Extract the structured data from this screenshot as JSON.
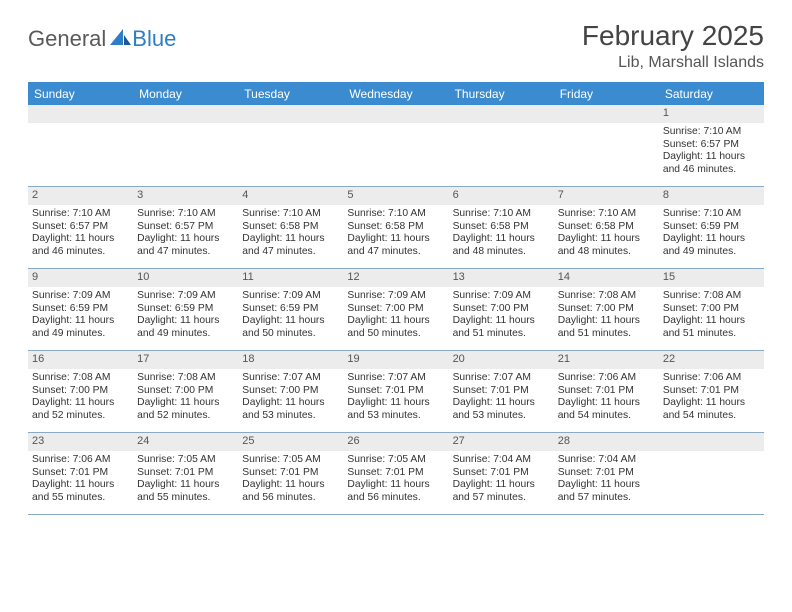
{
  "logo": {
    "word1": "General",
    "word2": "Blue"
  },
  "title": "February 2025",
  "location": "Lib, Marshall Islands",
  "header_bg": "#3b8bd0",
  "daynames": [
    "Sunday",
    "Monday",
    "Tuesday",
    "Wednesday",
    "Thursday",
    "Friday",
    "Saturday"
  ],
  "weeks": [
    [
      {
        "n": "",
        "sr": "",
        "ss": "",
        "dl": ""
      },
      {
        "n": "",
        "sr": "",
        "ss": "",
        "dl": ""
      },
      {
        "n": "",
        "sr": "",
        "ss": "",
        "dl": ""
      },
      {
        "n": "",
        "sr": "",
        "ss": "",
        "dl": ""
      },
      {
        "n": "",
        "sr": "",
        "ss": "",
        "dl": ""
      },
      {
        "n": "",
        "sr": "",
        "ss": "",
        "dl": ""
      },
      {
        "n": "1",
        "sr": "Sunrise: 7:10 AM",
        "ss": "Sunset: 6:57 PM",
        "dl": "Daylight: 11 hours and 46 minutes."
      }
    ],
    [
      {
        "n": "2",
        "sr": "Sunrise: 7:10 AM",
        "ss": "Sunset: 6:57 PM",
        "dl": "Daylight: 11 hours and 46 minutes."
      },
      {
        "n": "3",
        "sr": "Sunrise: 7:10 AM",
        "ss": "Sunset: 6:57 PM",
        "dl": "Daylight: 11 hours and 47 minutes."
      },
      {
        "n": "4",
        "sr": "Sunrise: 7:10 AM",
        "ss": "Sunset: 6:58 PM",
        "dl": "Daylight: 11 hours and 47 minutes."
      },
      {
        "n": "5",
        "sr": "Sunrise: 7:10 AM",
        "ss": "Sunset: 6:58 PM",
        "dl": "Daylight: 11 hours and 47 minutes."
      },
      {
        "n": "6",
        "sr": "Sunrise: 7:10 AM",
        "ss": "Sunset: 6:58 PM",
        "dl": "Daylight: 11 hours and 48 minutes."
      },
      {
        "n": "7",
        "sr": "Sunrise: 7:10 AM",
        "ss": "Sunset: 6:58 PM",
        "dl": "Daylight: 11 hours and 48 minutes."
      },
      {
        "n": "8",
        "sr": "Sunrise: 7:10 AM",
        "ss": "Sunset: 6:59 PM",
        "dl": "Daylight: 11 hours and 49 minutes."
      }
    ],
    [
      {
        "n": "9",
        "sr": "Sunrise: 7:09 AM",
        "ss": "Sunset: 6:59 PM",
        "dl": "Daylight: 11 hours and 49 minutes."
      },
      {
        "n": "10",
        "sr": "Sunrise: 7:09 AM",
        "ss": "Sunset: 6:59 PM",
        "dl": "Daylight: 11 hours and 49 minutes."
      },
      {
        "n": "11",
        "sr": "Sunrise: 7:09 AM",
        "ss": "Sunset: 6:59 PM",
        "dl": "Daylight: 11 hours and 50 minutes."
      },
      {
        "n": "12",
        "sr": "Sunrise: 7:09 AM",
        "ss": "Sunset: 7:00 PM",
        "dl": "Daylight: 11 hours and 50 minutes."
      },
      {
        "n": "13",
        "sr": "Sunrise: 7:09 AM",
        "ss": "Sunset: 7:00 PM",
        "dl": "Daylight: 11 hours and 51 minutes."
      },
      {
        "n": "14",
        "sr": "Sunrise: 7:08 AM",
        "ss": "Sunset: 7:00 PM",
        "dl": "Daylight: 11 hours and 51 minutes."
      },
      {
        "n": "15",
        "sr": "Sunrise: 7:08 AM",
        "ss": "Sunset: 7:00 PM",
        "dl": "Daylight: 11 hours and 51 minutes."
      }
    ],
    [
      {
        "n": "16",
        "sr": "Sunrise: 7:08 AM",
        "ss": "Sunset: 7:00 PM",
        "dl": "Daylight: 11 hours and 52 minutes."
      },
      {
        "n": "17",
        "sr": "Sunrise: 7:08 AM",
        "ss": "Sunset: 7:00 PM",
        "dl": "Daylight: 11 hours and 52 minutes."
      },
      {
        "n": "18",
        "sr": "Sunrise: 7:07 AM",
        "ss": "Sunset: 7:00 PM",
        "dl": "Daylight: 11 hours and 53 minutes."
      },
      {
        "n": "19",
        "sr": "Sunrise: 7:07 AM",
        "ss": "Sunset: 7:01 PM",
        "dl": "Daylight: 11 hours and 53 minutes."
      },
      {
        "n": "20",
        "sr": "Sunrise: 7:07 AM",
        "ss": "Sunset: 7:01 PM",
        "dl": "Daylight: 11 hours and 53 minutes."
      },
      {
        "n": "21",
        "sr": "Sunrise: 7:06 AM",
        "ss": "Sunset: 7:01 PM",
        "dl": "Daylight: 11 hours and 54 minutes."
      },
      {
        "n": "22",
        "sr": "Sunrise: 7:06 AM",
        "ss": "Sunset: 7:01 PM",
        "dl": "Daylight: 11 hours and 54 minutes."
      }
    ],
    [
      {
        "n": "23",
        "sr": "Sunrise: 7:06 AM",
        "ss": "Sunset: 7:01 PM",
        "dl": "Daylight: 11 hours and 55 minutes."
      },
      {
        "n": "24",
        "sr": "Sunrise: 7:05 AM",
        "ss": "Sunset: 7:01 PM",
        "dl": "Daylight: 11 hours and 55 minutes."
      },
      {
        "n": "25",
        "sr": "Sunrise: 7:05 AM",
        "ss": "Sunset: 7:01 PM",
        "dl": "Daylight: 11 hours and 56 minutes."
      },
      {
        "n": "26",
        "sr": "Sunrise: 7:05 AM",
        "ss": "Sunset: 7:01 PM",
        "dl": "Daylight: 11 hours and 56 minutes."
      },
      {
        "n": "27",
        "sr": "Sunrise: 7:04 AM",
        "ss": "Sunset: 7:01 PM",
        "dl": "Daylight: 11 hours and 57 minutes."
      },
      {
        "n": "28",
        "sr": "Sunrise: 7:04 AM",
        "ss": "Sunset: 7:01 PM",
        "dl": "Daylight: 11 hours and 57 minutes."
      },
      {
        "n": "",
        "sr": "",
        "ss": "",
        "dl": ""
      }
    ]
  ]
}
